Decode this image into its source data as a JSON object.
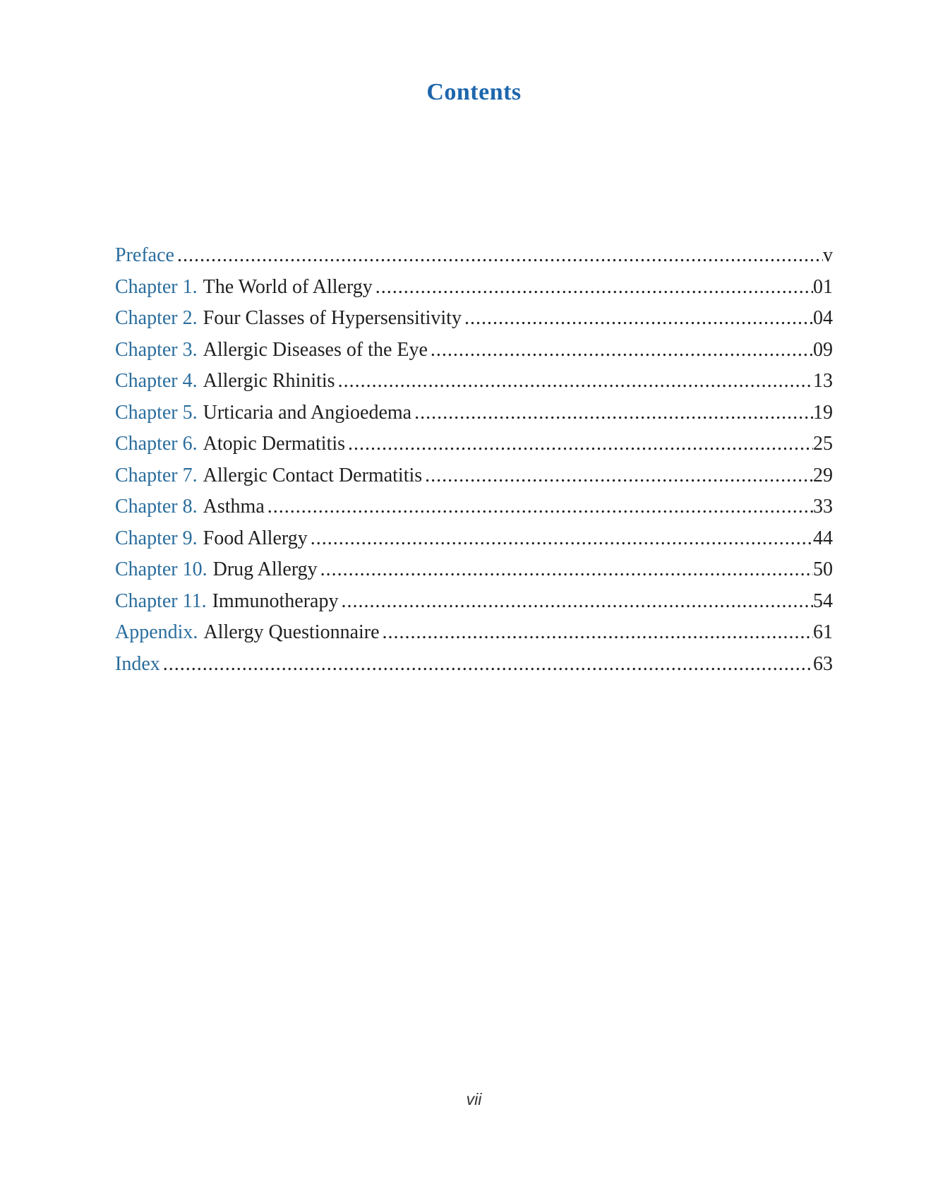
{
  "title": "Contents",
  "colors": {
    "title_blue": "#1d66ad",
    "entry_blue": "#2a6d9d",
    "text_dark": "#1f1f1f",
    "page_bg": "#ffffff"
  },
  "toc": {
    "rows": [
      {
        "label": "Preface",
        "title": "",
        "page": "v"
      },
      {
        "label": "Chapter 1.",
        "title": "The World of Allergy",
        "page": "01"
      },
      {
        "label": "Chapter 2.",
        "title": "Four Classes of Hypersensitivity",
        "page": "04"
      },
      {
        "label": "Chapter 3.",
        "title": "Allergic Diseases of the Eye",
        "page": "09"
      },
      {
        "label": "Chapter 4.",
        "title": "Allergic Rhinitis",
        "page": "13"
      },
      {
        "label": "Chapter 5.",
        "title": "Urticaria and Angioedema",
        "page": "19"
      },
      {
        "label": "Chapter 6.",
        "title": "Atopic Dermatitis",
        "page": "25"
      },
      {
        "label": "Chapter 7.",
        "title": "Allergic Contact Dermatitis",
        "page": "29"
      },
      {
        "label": "Chapter 8.",
        "title": "Asthma",
        "page": "33"
      },
      {
        "label": "Chapter 9.",
        "title": "Food Allergy",
        "page": "44"
      },
      {
        "label": "Chapter 10.",
        "title": "Drug Allergy",
        "page": "50"
      },
      {
        "label": "Chapter 11.",
        "title": "Immunotherapy",
        "page": "54"
      },
      {
        "label": "Appendix.",
        "title": "Allergy Questionnaire",
        "page": "61"
      },
      {
        "label": "Index",
        "title": "",
        "page": "63"
      }
    ]
  },
  "footer": {
    "page_number": "vii"
  }
}
